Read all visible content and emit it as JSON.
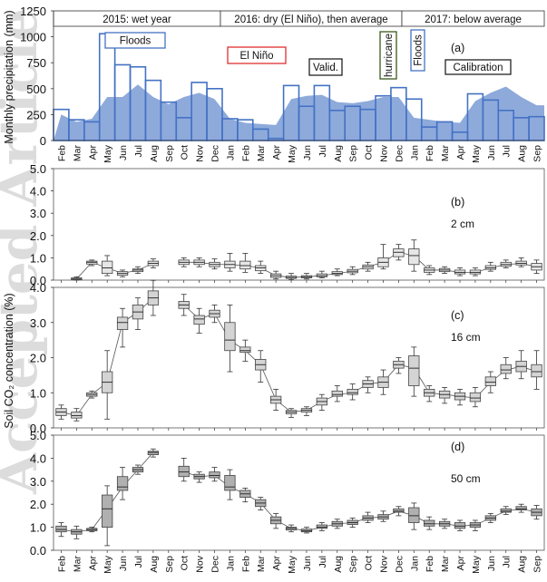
{
  "watermark": "Accepted Article",
  "months": [
    "Feb",
    "Mar",
    "Apr",
    "May",
    "Jun",
    "Jul",
    "Aug",
    "Sep",
    "Oct",
    "Nov",
    "Dec",
    "Jan",
    "Feb",
    "Mar",
    "Apr",
    "May",
    "Jun",
    "Jul",
    "Aug",
    "Sep",
    "Oct",
    "Nov",
    "Dec",
    "Jan",
    "Feb",
    "Mar",
    "Apr",
    "May",
    "Jun",
    "Jul",
    "Aug",
    "Sep"
  ],
  "periods": [
    "2015: wet year",
    "2016: dry (El Niño), then average",
    "2017: below average"
  ],
  "annotations": {
    "floods1": "Floods",
    "elnino": "El Niño",
    "valid": "Valid.",
    "hurricane": "hurricane",
    "floods2": "Floods",
    "calibration": "Calibration"
  },
  "ylabel_top": "Monthly precipitation (mm)",
  "ylabel_bottom": "Soil CO₂ concentration (%)",
  "panel_labels": {
    "a": "(a)",
    "b": "(b)",
    "c": "(c)",
    "d": "(d)"
  },
  "depth_labels": {
    "b": "2 cm",
    "c": "16 cm",
    "d": "50 cm"
  },
  "chart_data": [
    {
      "type": "bar",
      "panel": "(a)",
      "ylabel": "Monthly precipitation (mm)",
      "ylim": [
        0,
        1250
      ],
      "yticks": [
        0,
        250,
        500,
        750,
        1000,
        1250
      ],
      "series": [
        {
          "name": "",
          "style": "outline step",
          "values": [
            300,
            200,
            180,
            1030,
            730,
            710,
            580,
            370,
            220,
            560,
            500,
            210,
            200,
            110,
            20,
            530,
            330,
            530,
            290,
            330,
            300,
            430,
            510,
            400,
            130,
            180,
            80,
            450,
            390,
            290,
            220,
            230
          ]
        },
        {
          "name": "",
          "style": "filled area",
          "values": [
            250,
            180,
            210,
            420,
            420,
            540,
            420,
            350,
            420,
            460,
            400,
            210,
            170,
            160,
            150,
            400,
            430,
            440,
            370,
            360,
            380,
            420,
            420,
            220,
            200,
            180,
            170,
            380,
            460,
            520,
            420,
            340
          ]
        }
      ]
    },
    {
      "type": "box",
      "panel": "(b)",
      "depth": "2 cm",
      "ylim": [
        0,
        5
      ],
      "yticks": [
        0,
        1,
        2,
        3,
        4,
        5
      ],
      "median": [
        null,
        0.05,
        0.8,
        0.55,
        0.3,
        0.45,
        0.75,
        null,
        0.8,
        0.8,
        0.7,
        0.7,
        0.65,
        0.55,
        0.2,
        0.12,
        0.15,
        0.2,
        0.3,
        0.4,
        0.6,
        0.8,
        1.25,
        1.1,
        0.45,
        0.45,
        0.35,
        0.35,
        0.55,
        0.7,
        0.75,
        0.6
      ],
      "q1": [
        null,
        0.02,
        0.72,
        0.3,
        0.22,
        0.38,
        0.65,
        null,
        0.7,
        0.7,
        0.6,
        0.55,
        0.5,
        0.42,
        0.12,
        0.08,
        0.1,
        0.15,
        0.25,
        0.33,
        0.5,
        0.6,
        1.05,
        0.7,
        0.35,
        0.38,
        0.28,
        0.28,
        0.48,
        0.62,
        0.68,
        0.45
      ],
      "q3": [
        null,
        0.1,
        0.85,
        0.85,
        0.38,
        0.5,
        0.85,
        null,
        0.9,
        0.9,
        0.8,
        0.85,
        0.85,
        0.65,
        0.28,
        0.18,
        0.2,
        0.28,
        0.38,
        0.48,
        0.68,
        1.0,
        1.4,
        1.4,
        0.55,
        0.52,
        0.45,
        0.45,
        0.65,
        0.8,
        0.85,
        0.75
      ],
      "whisker_low": [
        null,
        0.0,
        0.65,
        0.2,
        0.15,
        0.3,
        0.55,
        null,
        0.6,
        0.6,
        0.5,
        0.4,
        0.35,
        0.3,
        0.05,
        0.02,
        0.05,
        0.1,
        0.2,
        0.25,
        0.4,
        0.5,
        0.9,
        0.4,
        0.25,
        0.3,
        0.2,
        0.2,
        0.4,
        0.55,
        0.6,
        0.3
      ],
      "whisker_high": [
        null,
        0.15,
        0.9,
        1.1,
        0.45,
        0.6,
        0.95,
        null,
        1.0,
        1.0,
        0.95,
        1.2,
        1.2,
        0.85,
        0.4,
        0.3,
        0.3,
        0.4,
        0.5,
        0.6,
        0.8,
        1.6,
        1.6,
        1.8,
        0.65,
        0.6,
        0.55,
        0.55,
        0.8,
        0.9,
        1.0,
        0.9
      ]
    },
    {
      "type": "box",
      "panel": "(c)",
      "depth": "16 cm",
      "ylim": [
        0,
        4
      ],
      "yticks": [
        0,
        1,
        2,
        3,
        4
      ],
      "median": [
        0.45,
        0.35,
        0.95,
        1.3,
        3.0,
        3.3,
        3.7,
        null,
        3.5,
        3.1,
        3.25,
        2.5,
        2.2,
        1.8,
        0.8,
        0.45,
        0.5,
        0.75,
        0.95,
        1.0,
        1.25,
        1.3,
        1.8,
        1.7,
        1.0,
        0.95,
        0.9,
        0.85,
        1.3,
        1.65,
        1.75,
        1.6
      ],
      "q1": [
        0.35,
        0.28,
        0.9,
        1.0,
        2.8,
        3.1,
        3.5,
        null,
        3.4,
        2.95,
        3.15,
        2.2,
        2.15,
        1.65,
        0.7,
        0.4,
        0.45,
        0.65,
        0.9,
        0.95,
        1.15,
        1.15,
        1.7,
        1.2,
        0.9,
        0.85,
        0.8,
        0.75,
        1.2,
        1.55,
        1.6,
        1.45
      ],
      "q3": [
        0.55,
        0.45,
        1.0,
        1.6,
        3.15,
        3.5,
        3.9,
        null,
        3.6,
        3.2,
        3.35,
        3.0,
        2.3,
        1.95,
        0.9,
        0.5,
        0.55,
        0.85,
        1.05,
        1.1,
        1.35,
        1.45,
        1.9,
        2.05,
        1.1,
        1.05,
        1.0,
        1.0,
        1.45,
        1.8,
        1.9,
        1.8
      ],
      "whisker_low": [
        0.25,
        0.2,
        0.85,
        0.25,
        2.3,
        2.8,
        3.2,
        null,
        3.2,
        2.7,
        3.0,
        1.6,
        1.9,
        1.3,
        0.5,
        0.3,
        0.35,
        0.5,
        0.75,
        0.8,
        1.0,
        0.95,
        1.55,
        0.9,
        0.75,
        0.7,
        0.65,
        0.6,
        1.0,
        1.4,
        1.4,
        1.1
      ],
      "whisker_high": [
        0.65,
        0.55,
        1.05,
        2.2,
        3.4,
        3.7,
        4.2,
        null,
        3.8,
        3.4,
        3.5,
        3.5,
        2.5,
        2.2,
        1.1,
        0.55,
        0.6,
        0.95,
        1.2,
        1.25,
        1.45,
        1.65,
        2.0,
        2.3,
        1.2,
        1.15,
        1.1,
        1.15,
        1.6,
        2.0,
        2.2,
        2.2
      ]
    },
    {
      "type": "box",
      "panel": "(d)",
      "depth": "50 cm",
      "ylim": [
        0,
        5
      ],
      "yticks": [
        0,
        1,
        2,
        3,
        4,
        5
      ],
      "median": [
        0.9,
        0.8,
        0.9,
        1.8,
        2.75,
        3.5,
        4.25,
        null,
        3.4,
        3.2,
        3.25,
        2.75,
        2.45,
        2.05,
        1.3,
        0.95,
        0.85,
        1.0,
        1.15,
        1.2,
        1.4,
        1.45,
        1.7,
        1.5,
        1.15,
        1.15,
        1.05,
        1.1,
        1.4,
        1.7,
        1.8,
        1.65
      ],
      "q1": [
        0.8,
        0.7,
        0.85,
        1.0,
        2.6,
        3.4,
        4.15,
        null,
        3.2,
        3.1,
        3.15,
        2.6,
        2.3,
        1.9,
        1.15,
        0.88,
        0.8,
        0.95,
        1.05,
        1.12,
        1.3,
        1.35,
        1.65,
        1.2,
        1.05,
        1.05,
        0.95,
        1.0,
        1.3,
        1.65,
        1.75,
        1.5
      ],
      "q3": [
        1.05,
        0.9,
        0.95,
        2.4,
        3.2,
        3.6,
        4.3,
        null,
        3.65,
        3.3,
        3.4,
        3.25,
        2.6,
        2.2,
        1.45,
        1.0,
        0.92,
        1.1,
        1.25,
        1.3,
        1.5,
        1.55,
        1.8,
        1.85,
        1.3,
        1.25,
        1.2,
        1.2,
        1.5,
        1.8,
        1.9,
        1.8
      ],
      "whisker_low": [
        0.6,
        0.5,
        0.8,
        0.2,
        2.2,
        3.3,
        4.05,
        null,
        3.0,
        2.95,
        3.0,
        2.2,
        2.1,
        1.75,
        0.95,
        0.8,
        0.75,
        0.85,
        0.95,
        1.0,
        1.2,
        1.25,
        1.5,
        0.9,
        0.9,
        0.95,
        0.85,
        0.85,
        1.2,
        1.55,
        1.65,
        1.35
      ],
      "whisker_high": [
        1.2,
        1.05,
        1.0,
        2.8,
        3.6,
        3.7,
        4.4,
        null,
        4.0,
        3.4,
        3.6,
        3.5,
        2.7,
        2.3,
        1.6,
        1.1,
        1.0,
        1.2,
        1.35,
        1.4,
        1.65,
        1.7,
        1.9,
        2.05,
        1.45,
        1.35,
        1.3,
        1.3,
        1.6,
        1.9,
        2.0,
        1.95
      ]
    }
  ],
  "colors": {
    "fill": "#8eaadb",
    "outline": "#4472c4",
    "box2cm": "#e6e6e6",
    "box16cm": "#d4d4d4",
    "box50cm": "#b0b0b0",
    "elnino": "#e03030",
    "hurricane": "#3a5a1a",
    "floods": "#4472c4",
    "watermark": "#dcdcdc"
  }
}
